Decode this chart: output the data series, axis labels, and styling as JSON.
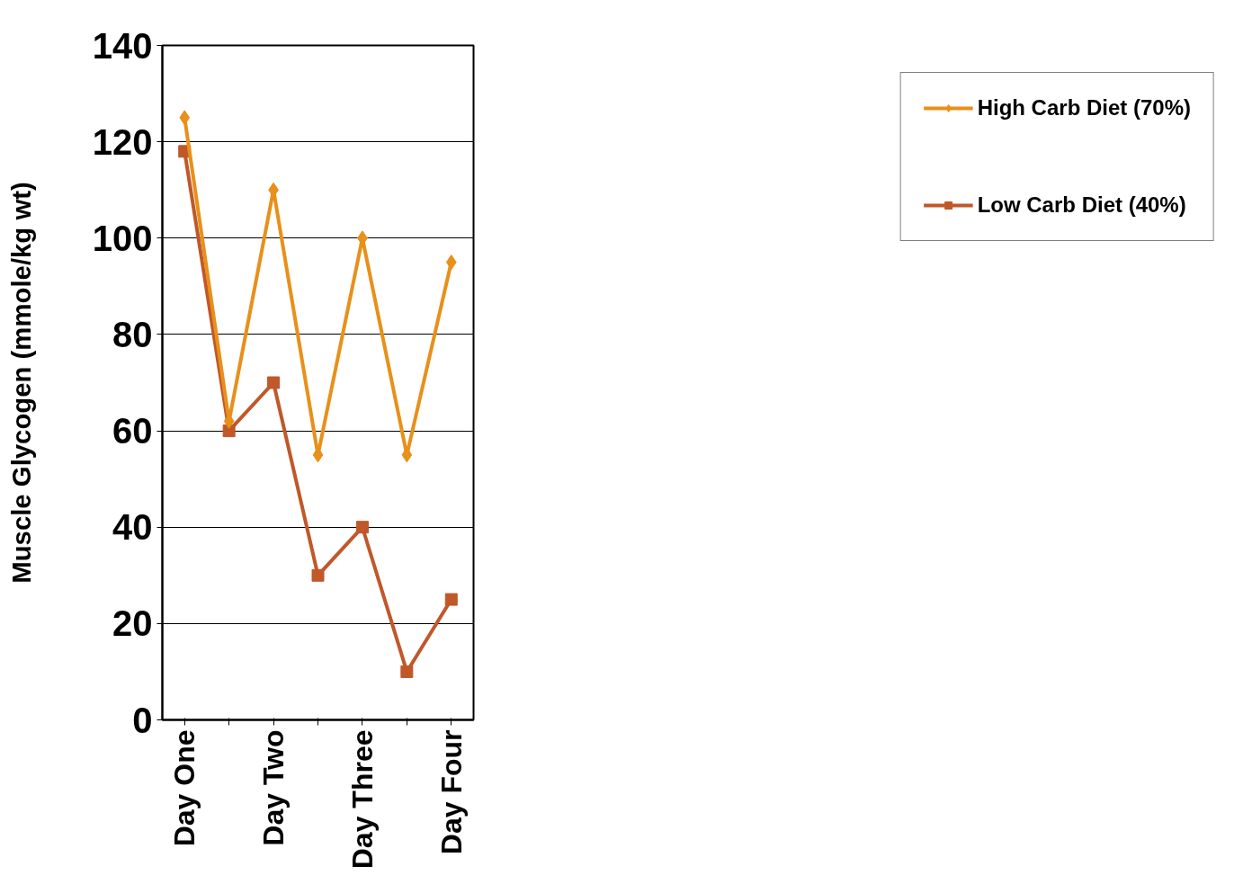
{
  "chart_data": {
    "type": "line",
    "ylabel": "Muscle Glycogen (mmole/kg wt)",
    "categories": [
      "Day One",
      null,
      "Day Two",
      null,
      "Day Three",
      null,
      "Day Four"
    ],
    "series": [
      {
        "name": "High Carb Diet (70%)",
        "color": "#e8901a",
        "marker": "diamond",
        "values": [
          125,
          62,
          110,
          55,
          100,
          55,
          95
        ]
      },
      {
        "name": "Low Carb Diet (40%)",
        "color": "#c0582a",
        "marker": "square",
        "values": [
          118,
          60,
          70,
          30,
          40,
          10,
          25
        ]
      }
    ],
    "ylim": [
      0,
      140
    ],
    "yticks": [
      0,
      20,
      40,
      60,
      80,
      100,
      120,
      140
    ],
    "grid": "y",
    "legend": "right",
    "line_style": "solid"
  }
}
